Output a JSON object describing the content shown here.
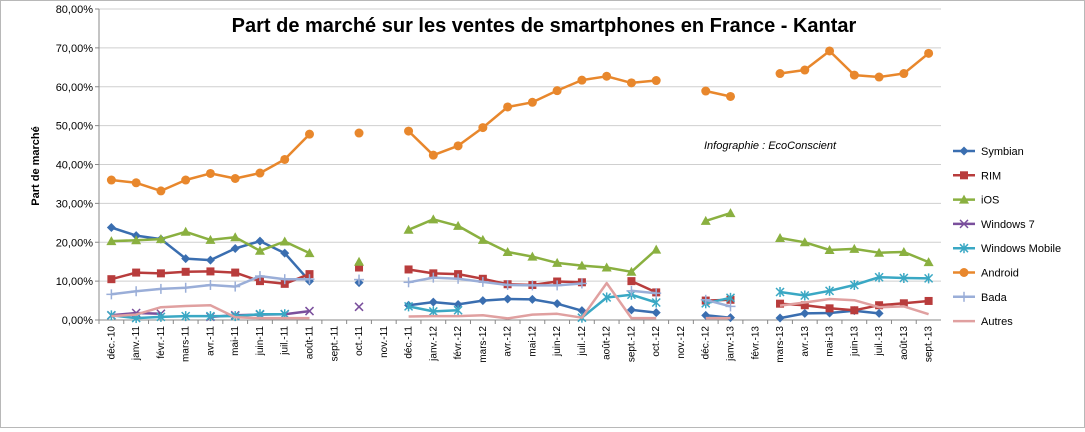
{
  "chart_data": {
    "type": "line",
    "title": "Part de marché sur les ventes de smartphones en France - Kantar",
    "ylabel": "Part de marché",
    "xlabel": "",
    "annotation": "Infographie : EcoConscient",
    "ylim": [
      0,
      80
    ],
    "yticks": [
      "0,00%",
      "10,00%",
      "20,00%",
      "30,00%",
      "40,00%",
      "50,00%",
      "60,00%",
      "70,00%",
      "80,00%"
    ],
    "categories": [
      "déc.-10",
      "janv.-11",
      "févr.-11",
      "mars-11",
      "avr.-11",
      "mai-11",
      "juin-11",
      "juil.-11",
      "août-11",
      "sept.-11",
      "oct.-11",
      "nov.-11",
      "déc.-11",
      "janv.-12",
      "févr.-12",
      "mars-12",
      "avr.-12",
      "mai-12",
      "juin-12",
      "juil.-12",
      "août-12",
      "sept.-12",
      "oct.-12",
      "nov.-12",
      "déc.-12",
      "janv.-13",
      "févr.-13",
      "mars-13",
      "avr.-13",
      "mai-13",
      "juin-13",
      "juil.-13",
      "août-13",
      "sept.-13"
    ],
    "legend_position": "right",
    "grid": true,
    "series": [
      {
        "name": "Symbian",
        "color": "#3a6eb0",
        "marker": "diamond",
        "values": [
          23.8,
          21.7,
          20.8,
          15.8,
          15.4,
          18.4,
          20.3,
          17.2,
          10.0,
          null,
          9.6,
          null,
          3.8,
          4.6,
          4.0,
          5.0,
          5.4,
          5.3,
          4.2,
          2.4,
          null,
          2.6,
          1.9,
          null,
          1.2,
          0.6,
          null,
          0.5,
          1.7,
          1.8,
          2.4,
          1.7,
          null,
          null
        ]
      },
      {
        "name": "RIM",
        "color": "#b83c3c",
        "marker": "square",
        "values": [
          10.5,
          12.2,
          12.0,
          12.4,
          12.5,
          12.2,
          10.0,
          9.3,
          11.8,
          null,
          13.5,
          null,
          13.0,
          12.0,
          11.8,
          10.6,
          9.2,
          9.0,
          9.9,
          9.7,
          null,
          10.0,
          7.1,
          null,
          5.0,
          5.2,
          null,
          4.2,
          3.8,
          3.0,
          2.5,
          3.8,
          4.3,
          4.9
        ]
      },
      {
        "name": "iOS",
        "color": "#8ab040",
        "marker": "triangle",
        "values": [
          20.3,
          20.5,
          20.8,
          22.7,
          20.6,
          21.3,
          17.8,
          20.2,
          17.2,
          null,
          15.0,
          null,
          23.2,
          25.9,
          24.2,
          20.6,
          17.5,
          16.3,
          14.7,
          14.0,
          13.5,
          12.4,
          18.1,
          null,
          25.5,
          27.5,
          null,
          21.1,
          20.0,
          18.0,
          18.3,
          17.3,
          17.5,
          14.9
        ]
      },
      {
        "name": "Windows 7",
        "color": "#7a4f9c",
        "marker": "x",
        "values": [
          1.2,
          1.8,
          1.6,
          null,
          0.8,
          1.2,
          1.4,
          1.5,
          2.3,
          null,
          3.4,
          null,
          null,
          null,
          null,
          null,
          null,
          null,
          null,
          null,
          null,
          null,
          null,
          null,
          null,
          null,
          null,
          null,
          null,
          null,
          null,
          null,
          null,
          null
        ]
      },
      {
        "name": "Windows Mobile",
        "color": "#3aa8c4",
        "marker": "star",
        "values": [
          1.2,
          0.5,
          0.8,
          1.0,
          1.0,
          1.0,
          1.5,
          1.5,
          null,
          null,
          null,
          null,
          3.5,
          2.2,
          2.5,
          null,
          null,
          null,
          null,
          0.6,
          5.8,
          6.5,
          4.5,
          null,
          4.3,
          5.7,
          null,
          7.2,
          6.3,
          7.5,
          9.0,
          11.0,
          10.8,
          10.7
        ]
      },
      {
        "name": "Android",
        "color": "#e8872c",
        "marker": "circle",
        "values": [
          36.0,
          35.3,
          33.2,
          36.0,
          37.7,
          36.4,
          37.8,
          41.3,
          47.8,
          null,
          48.1,
          null,
          48.6,
          42.4,
          44.8,
          49.5,
          54.8,
          56.0,
          59.0,
          61.7,
          62.7,
          61.0,
          61.6,
          null,
          58.9,
          57.5,
          null,
          63.4,
          64.3,
          69.2,
          63.0,
          62.5,
          63.4,
          68.6
        ]
      },
      {
        "name": "Bada",
        "color": "#9aaed8",
        "marker": "plus",
        "values": [
          6.6,
          7.4,
          8.0,
          8.3,
          9.0,
          8.6,
          11.3,
          10.5,
          10.5,
          null,
          10.4,
          null,
          9.7,
          10.9,
          10.6,
          9.8,
          9.0,
          8.9,
          8.9,
          9.4,
          null,
          7.5,
          6.9,
          null,
          5.2,
          3.5,
          null,
          null,
          null,
          null,
          null,
          null,
          null,
          null
        ]
      },
      {
        "name": "Autres",
        "color": "#e0a0a0",
        "marker": "none",
        "values": [
          1.0,
          1.4,
          3.3,
          3.6,
          3.8,
          0.7,
          0.5,
          0.5,
          0.5,
          null,
          0.7,
          null,
          0.9,
          1.0,
          1.0,
          1.2,
          0.4,
          1.4,
          1.6,
          0.6,
          9.5,
          0.5,
          0.5,
          null,
          0.5,
          0.5,
          null,
          3.7,
          4.5,
          5.4,
          5.1,
          3.3,
          3.5,
          1.5
        ]
      }
    ]
  }
}
